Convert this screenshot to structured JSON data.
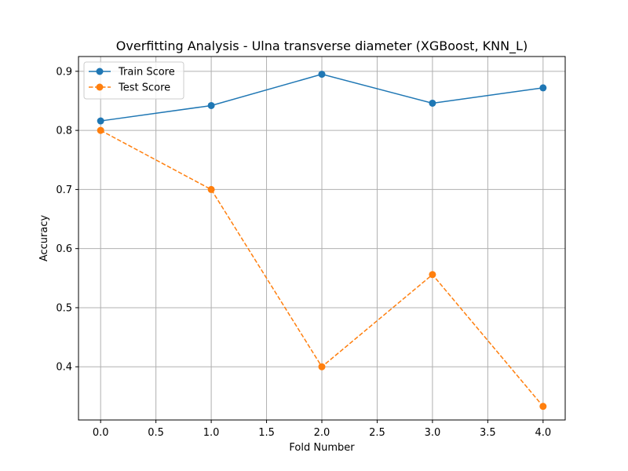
{
  "chart_data": {
    "type": "line",
    "title": "Overfitting Analysis - Ulna transverse diameter (XGBoost, KNN_L)",
    "xlabel": "Fold Number",
    "ylabel": "Accuracy",
    "x": [
      0,
      1,
      2,
      3,
      4
    ],
    "xlim": [
      -0.2,
      4.2
    ],
    "ylim": [
      0.31,
      0.925
    ],
    "x_ticks": [
      0.0,
      0.5,
      1.0,
      1.5,
      2.0,
      2.5,
      3.0,
      3.5,
      4.0
    ],
    "x_tick_labels": [
      "0.0",
      "0.5",
      "1.0",
      "1.5",
      "2.0",
      "2.5",
      "3.0",
      "3.5",
      "4.0"
    ],
    "y_ticks": [
      0.4,
      0.5,
      0.6,
      0.7,
      0.8,
      0.9
    ],
    "y_tick_labels": [
      "0.4",
      "0.5",
      "0.6",
      "0.7",
      "0.8",
      "0.9"
    ],
    "grid": true,
    "legend_position": "top-left",
    "series": [
      {
        "name": "Train Score",
        "values": [
          0.816,
          0.842,
          0.895,
          0.846,
          0.872
        ],
        "color": "#1f77b4",
        "dash": "solid",
        "marker": "circle"
      },
      {
        "name": "Test Score",
        "values": [
          0.8,
          0.7,
          0.4,
          0.556,
          0.333
        ],
        "color": "#ff7f0e",
        "dash": "dashed",
        "marker": "circle"
      }
    ]
  }
}
